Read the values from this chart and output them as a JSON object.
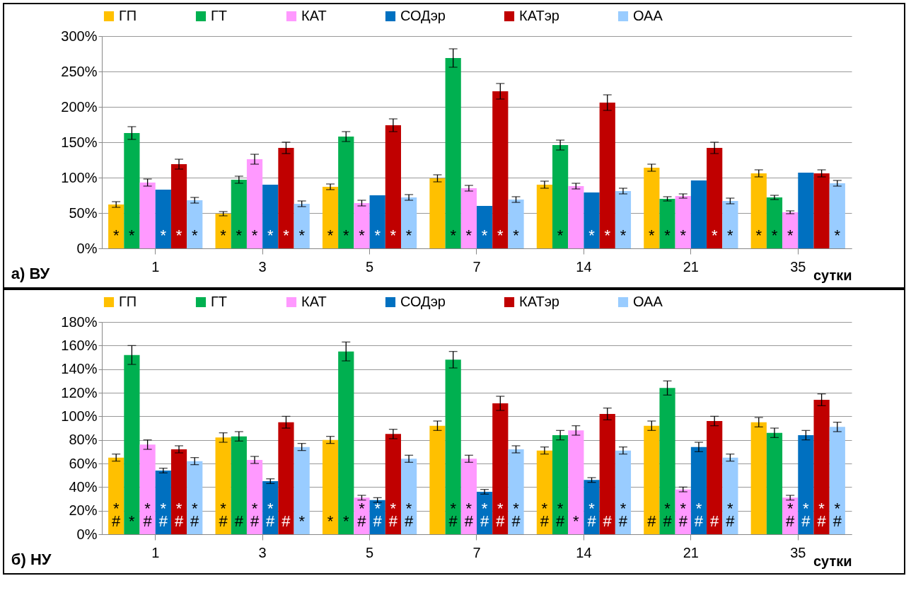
{
  "chart_data": [
    {
      "type": "bar",
      "title": "а) ВУ",
      "xlabel": "сутки",
      "categories": [
        "1",
        "3",
        "5",
        "7",
        "14",
        "21",
        "35"
      ],
      "ylim": [
        0,
        300
      ],
      "yticks": [
        {
          "value": 0,
          "label": "0%"
        },
        {
          "value": 50,
          "label": "50%"
        },
        {
          "value": 100,
          "label": "100%"
        },
        {
          "value": 150,
          "label": "150%"
        },
        {
          "value": 200,
          "label": "200%"
        },
        {
          "value": 250,
          "label": "250%"
        },
        {
          "value": 300,
          "label": "300%"
        }
      ],
      "grid": "y",
      "legend": "top",
      "series": [
        {
          "name": "ГП",
          "color": "#ffc000",
          "values": [
            62,
            49,
            87,
            99,
            90,
            114,
            106
          ],
          "errors": [
            4,
            3,
            4,
            5,
            5,
            5,
            5
          ],
          "value_labels": [
            "*",
            "*",
            "*",
            null,
            null,
            "*",
            "*"
          ]
        },
        {
          "name": "ГТ",
          "color": "#00b050",
          "values": [
            163,
            97,
            158,
            269,
            146,
            70,
            72
          ],
          "errors": [
            9,
            5,
            7,
            13,
            7,
            3,
            3
          ],
          "value_labels": [
            "*",
            "*",
            "*",
            "*",
            "*",
            "*",
            "*"
          ]
        },
        {
          "name": "КАТ",
          "color": "#ff99ff",
          "values": [
            93,
            126,
            64,
            85,
            88,
            74,
            51
          ],
          "errors": [
            5,
            7,
            4,
            4,
            4,
            3,
            2
          ],
          "value_labels": [
            null,
            "*",
            "*",
            "*",
            null,
            "*",
            "*"
          ]
        },
        {
          "name": "СОДэр",
          "color": "#0070c0",
          "values": [
            83,
            90,
            75,
            60,
            79,
            96,
            107
          ],
          "value_labels": [
            "*",
            "*",
            "*",
            "*",
            "*",
            null,
            null
          ]
        },
        {
          "name": "КАТэр",
          "color": "#c00000",
          "values": [
            119,
            142,
            174,
            222,
            206,
            142,
            106
          ],
          "errors": [
            7,
            8,
            9,
            11,
            11,
            8,
            5
          ],
          "value_labels": [
            "*",
            "*",
            "*",
            "*",
            "*",
            "*",
            null
          ]
        },
        {
          "name": "ОАА",
          "color": "#99ccff",
          "values": [
            68,
            63,
            72,
            69,
            81,
            67,
            92
          ],
          "errors": [
            4,
            4,
            4,
            4,
            4,
            4,
            4
          ],
          "value_labels": [
            "*",
            "*",
            "*",
            "*",
            "*",
            "*",
            "*"
          ]
        }
      ]
    },
    {
      "type": "bar",
      "title": "б) НУ",
      "xlabel": "сутки",
      "categories": [
        "1",
        "3",
        "5",
        "7",
        "14",
        "21",
        "35"
      ],
      "ylim": [
        0,
        180
      ],
      "yticks": [
        {
          "value": 0,
          "label": "0%"
        },
        {
          "value": 20,
          "label": "20%"
        },
        {
          "value": 40,
          "label": "40%"
        },
        {
          "value": 60,
          "label": "60%"
        },
        {
          "value": 80,
          "label": "80%"
        },
        {
          "value": 100,
          "label": "100%"
        },
        {
          "value": 120,
          "label": "120%"
        },
        {
          "value": 140,
          "label": "140%"
        },
        {
          "value": 160,
          "label": "160%"
        },
        {
          "value": 180,
          "label": "180%"
        }
      ],
      "grid": "y",
      "legend": "top",
      "series": [
        {
          "name": "ГП",
          "color": "#ffc000",
          "values": [
            65,
            82,
            80,
            92,
            71,
            92,
            95
          ],
          "errors": [
            3,
            4,
            3,
            4,
            3,
            4,
            4
          ],
          "value_labels": [
            "*\n#",
            "*\n#",
            "*",
            null,
            "*\n#",
            "#",
            null
          ]
        },
        {
          "name": "ГТ",
          "color": "#00b050",
          "values": [
            152,
            83,
            155,
            148,
            84,
            124,
            86
          ],
          "errors": [
            8,
            4,
            8,
            7,
            4,
            6,
            4
          ],
          "value_labels": [
            "*",
            "#",
            "*",
            "*\n#",
            "*\n#",
            "*\n#",
            null
          ]
        },
        {
          "name": "КАТ",
          "color": "#ff99ff",
          "values": [
            76,
            63,
            31,
            64,
            88,
            38,
            31
          ],
          "errors": [
            4,
            3,
            2,
            3,
            4,
            2,
            2
          ],
          "value_labels": [
            "*\n#",
            "*\n#",
            "*\n#",
            "*\n#",
            "*",
            "*\n#",
            "*\n#"
          ]
        },
        {
          "name": "СОДэр",
          "color": "#0070c0",
          "values": [
            54,
            45,
            29,
            36,
            46,
            74,
            84
          ],
          "errors": [
            2,
            2,
            2,
            2,
            2,
            4,
            4
          ],
          "value_labels": [
            "*\n#",
            "*\n#",
            "*\n#",
            "*\n#",
            "*\n#",
            "*\n#",
            "*\n#"
          ]
        },
        {
          "name": "КАТэр",
          "color": "#c00000",
          "values": [
            72,
            95,
            85,
            111,
            102,
            96,
            114
          ],
          "errors": [
            3,
            5,
            4,
            6,
            5,
            4,
            5
          ],
          "value_labels": [
            "*\n#",
            "#",
            "*\n#",
            "*\n#",
            "#",
            "#",
            "*\n#"
          ]
        },
        {
          "name": "ОАА",
          "color": "#99ccff",
          "values": [
            62,
            74,
            64,
            72,
            71,
            65,
            91
          ],
          "errors": [
            3,
            3,
            3,
            3,
            3,
            3,
            4
          ],
          "value_labels": [
            "*\n#",
            "*",
            "*\n#",
            "*\n#",
            "*\n#",
            "*\n#",
            "*\n#"
          ]
        }
      ]
    }
  ]
}
